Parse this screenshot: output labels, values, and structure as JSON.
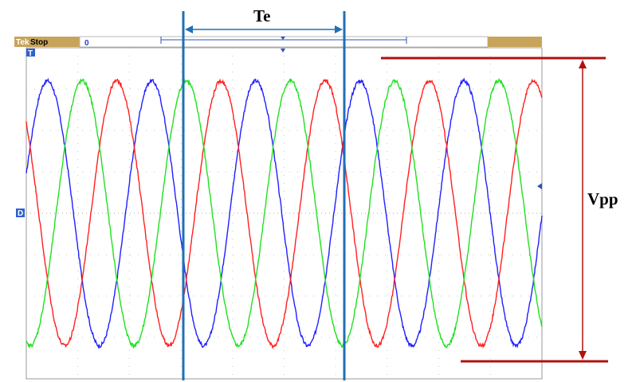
{
  "scope": {
    "brand": "Tek",
    "status": "Stop",
    "position_readout": "0",
    "trigger_marker": "T",
    "ground_marker": "D"
  },
  "chart_data": {
    "type": "line",
    "title": "",
    "xlabel": "",
    "ylabel": "",
    "grid": true,
    "xlim": [
      0,
      10
    ],
    "ylim": [
      -4,
      4
    ],
    "series": [
      {
        "color": "#2020ff",
        "amplitude": 3.2,
        "period": 2.02,
        "phase_deg": 0
      },
      {
        "color": "#ff2020",
        "amplitude": 3.2,
        "period": 2.02,
        "phase_deg": 120
      },
      {
        "color": "#20e020",
        "amplitude": 3.2,
        "period": 2.02,
        "phase_deg": -120
      }
    ],
    "annotations": {
      "period_label": "Te",
      "amplitude_label": "Vpp",
      "period_line_color": "#1f6fb5",
      "amplitude_line_color": "#b01010"
    }
  }
}
